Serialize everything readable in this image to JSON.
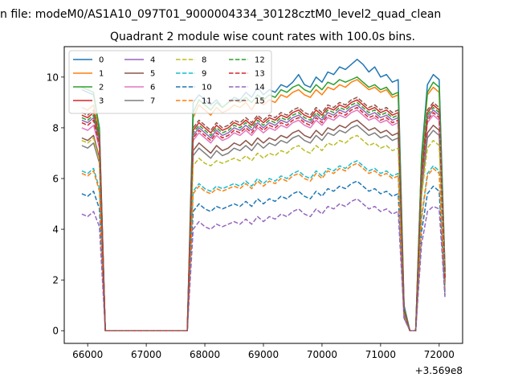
{
  "page": {
    "suptitle": "n file: modeM0/AS1A10_097T01_9000004334_30128cztM0_level2_quad_clean"
  },
  "chart_data": {
    "type": "line",
    "title": "Quadrant 2 module wise count rates with 100.0s bins.",
    "xlabel": "",
    "ylabel": "",
    "x_offset_label": "+3.569e8",
    "x_ticks": [
      66000,
      67000,
      68000,
      69000,
      70000,
      71000,
      72000
    ],
    "y_ticks": [
      0,
      2,
      4,
      6,
      8,
      10
    ],
    "xlim": [
      65600,
      72400
    ],
    "ylim": [
      -0.5,
      11.2
    ],
    "grid": false,
    "legend": {
      "placement": "top-left",
      "columns": 4
    },
    "x": [
      65900,
      66000,
      66100,
      66200,
      66300,
      67700,
      67800,
      67900,
      68000,
      68100,
      68200,
      68300,
      68400,
      68500,
      68600,
      68700,
      68800,
      68900,
      69000,
      69100,
      69200,
      69300,
      69400,
      69500,
      69600,
      69700,
      69800,
      69900,
      70000,
      70100,
      70200,
      70300,
      70400,
      70500,
      70600,
      70700,
      70800,
      70900,
      71000,
      71100,
      71200,
      71300,
      71400,
      71500,
      71600,
      71700,
      71800,
      71900,
      72000,
      72100
    ],
    "series": [
      {
        "name": "0",
        "color": "#1f77b4",
        "dash": "solid",
        "values": [
          9.5,
          9.4,
          9.3,
          8.0,
          0,
          0,
          9.0,
          9.3,
          9.1,
          8.9,
          9.1,
          8.8,
          9.0,
          9.2,
          9.1,
          9.4,
          9.2,
          9.6,
          9.3,
          9.5,
          9.4,
          9.7,
          9.6,
          9.8,
          10.1,
          9.7,
          9.6,
          10.0,
          9.8,
          10.2,
          10.1,
          10.4,
          10.3,
          10.5,
          10.7,
          10.5,
          10.2,
          10.4,
          10.0,
          10.1,
          9.8,
          9.9,
          1.0,
          0,
          0,
          6.9,
          9.7,
          10.1,
          9.9,
          2.4
        ]
      },
      {
        "name": "1",
        "color": "#ff7f0e",
        "dash": "solid",
        "values": [
          8.8,
          8.7,
          8.9,
          7.8,
          0,
          0,
          8.4,
          8.9,
          8.7,
          8.5,
          8.8,
          8.6,
          8.7,
          8.9,
          8.8,
          9.0,
          8.7,
          9.1,
          8.9,
          9.1,
          9.0,
          9.3,
          9.2,
          9.4,
          9.5,
          9.3,
          9.2,
          9.5,
          9.3,
          9.6,
          9.5,
          9.7,
          9.6,
          9.8,
          9.9,
          9.7,
          9.5,
          9.6,
          9.4,
          9.5,
          9.2,
          9.3,
          0.9,
          0,
          0,
          6.7,
          9.3,
          9.6,
          9.4,
          2.3
        ]
      },
      {
        "name": "2",
        "color": "#2ca02c",
        "dash": "solid",
        "values": [
          9.6,
          9.5,
          9.4,
          7.9,
          0,
          0,
          8.6,
          9.1,
          8.9,
          8.7,
          9.0,
          8.8,
          9.0,
          9.1,
          9.0,
          9.2,
          9.0,
          9.3,
          9.1,
          9.3,
          9.2,
          9.5,
          9.4,
          9.6,
          9.7,
          9.5,
          9.4,
          9.7,
          9.5,
          9.8,
          9.7,
          9.9,
          9.8,
          9.9,
          10.0,
          9.8,
          9.6,
          9.7,
          9.5,
          9.6,
          9.3,
          9.4,
          0.9,
          0,
          0,
          6.8,
          9.4,
          9.8,
          9.6,
          2.3
        ]
      },
      {
        "name": "3",
        "color": "#d62728",
        "dash": "solid",
        "values": [
          8.5,
          8.4,
          8.6,
          7.6,
          0,
          0,
          7.9,
          8.2,
          8.0,
          7.8,
          8.1,
          7.9,
          8.0,
          8.2,
          8.1,
          8.3,
          8.1,
          8.4,
          8.2,
          8.4,
          8.3,
          8.5,
          8.4,
          8.6,
          8.7,
          8.5,
          8.4,
          8.7,
          8.5,
          8.8,
          8.7,
          8.9,
          8.8,
          9.0,
          9.1,
          8.9,
          8.7,
          8.8,
          8.6,
          8.7,
          8.5,
          8.6,
          0.8,
          0,
          0,
          6.2,
          8.6,
          8.9,
          8.7,
          2.1
        ]
      },
      {
        "name": "4",
        "color": "#9467bd",
        "dash": "solid",
        "values": [
          8.3,
          8.2,
          8.4,
          7.4,
          0,
          0,
          7.7,
          8.0,
          7.8,
          7.6,
          7.9,
          7.7,
          7.8,
          8.0,
          7.9,
          8.1,
          7.9,
          8.2,
          8.0,
          8.2,
          8.1,
          8.3,
          8.2,
          8.4,
          8.5,
          8.3,
          8.2,
          8.5,
          8.3,
          8.6,
          8.5,
          8.7,
          8.6,
          8.8,
          8.9,
          8.7,
          8.5,
          8.6,
          8.4,
          8.5,
          8.3,
          8.4,
          0.8,
          0,
          0,
          6.0,
          8.4,
          8.7,
          8.5,
          2.0
        ]
      },
      {
        "name": "5",
        "color": "#8c564b",
        "dash": "solid",
        "values": [
          7.6,
          7.5,
          7.7,
          6.8,
          0,
          0,
          7.1,
          7.4,
          7.2,
          7.0,
          7.3,
          7.1,
          7.2,
          7.4,
          7.3,
          7.5,
          7.3,
          7.6,
          7.4,
          7.6,
          7.5,
          7.7,
          7.6,
          7.8,
          7.9,
          7.7,
          7.6,
          7.9,
          7.7,
          8.0,
          7.9,
          8.1,
          8.0,
          8.2,
          8.3,
          8.1,
          7.9,
          8.0,
          7.8,
          7.9,
          7.7,
          7.8,
          0.7,
          0,
          0,
          5.6,
          7.8,
          8.1,
          7.9,
          1.9
        ]
      },
      {
        "name": "6",
        "color": "#e377c2",
        "dash": "solid",
        "values": [
          8.0,
          7.9,
          8.1,
          7.2,
          0,
          0,
          7.5,
          7.8,
          7.6,
          7.4,
          7.7,
          7.5,
          7.6,
          7.8,
          7.7,
          7.9,
          7.7,
          8.0,
          7.8,
          8.0,
          7.9,
          8.1,
          8.0,
          8.2,
          8.3,
          8.1,
          8.0,
          8.3,
          8.1,
          8.4,
          8.3,
          8.5,
          8.4,
          8.6,
          8.7,
          8.5,
          8.3,
          8.4,
          8.2,
          8.3,
          8.1,
          8.2,
          0.8,
          0,
          0,
          5.9,
          8.2,
          8.5,
          8.3,
          2.0
        ]
      },
      {
        "name": "7",
        "color": "#7f7f7f",
        "dash": "solid",
        "values": [
          7.3,
          7.2,
          7.4,
          6.6,
          0,
          0,
          6.9,
          7.2,
          7.0,
          6.8,
          7.1,
          6.9,
          7.0,
          7.2,
          7.1,
          7.3,
          7.1,
          7.4,
          7.2,
          7.4,
          7.3,
          7.5,
          7.4,
          7.6,
          7.7,
          7.5,
          7.4,
          7.7,
          7.5,
          7.8,
          7.7,
          7.9,
          7.8,
          8.0,
          8.1,
          7.9,
          7.7,
          7.8,
          7.6,
          7.7,
          7.5,
          7.6,
          0.7,
          0,
          0,
          5.4,
          7.6,
          7.9,
          7.7,
          1.8
        ]
      },
      {
        "name": "8",
        "color": "#bcbd22",
        "dash": "dashed",
        "values": [
          7.5,
          7.4,
          7.6,
          6.7,
          0,
          0,
          6.5,
          6.8,
          6.6,
          6.5,
          6.7,
          6.6,
          6.7,
          6.8,
          6.7,
          6.9,
          6.7,
          7.0,
          6.8,
          7.0,
          6.9,
          7.1,
          7.0,
          7.2,
          7.3,
          7.1,
          7.0,
          7.3,
          7.1,
          7.4,
          7.3,
          7.5,
          7.4,
          7.6,
          7.7,
          7.5,
          7.3,
          7.4,
          7.2,
          7.3,
          7.1,
          7.2,
          0.7,
          0,
          0,
          5.3,
          7.2,
          7.5,
          7.3,
          1.8
        ]
      },
      {
        "name": "9",
        "color": "#17becf",
        "dash": "dashed",
        "values": [
          6.3,
          6.2,
          6.4,
          5.6,
          0,
          0,
          5.5,
          5.8,
          5.6,
          5.5,
          5.7,
          5.6,
          5.7,
          5.8,
          5.7,
          5.9,
          5.7,
          6.0,
          5.8,
          6.0,
          5.9,
          6.1,
          6.0,
          6.2,
          6.3,
          6.1,
          6.0,
          6.3,
          6.1,
          6.4,
          6.3,
          6.5,
          6.4,
          6.6,
          6.7,
          6.5,
          6.3,
          6.4,
          6.2,
          6.3,
          6.1,
          6.2,
          0.6,
          0,
          0,
          4.5,
          6.2,
          6.5,
          6.3,
          1.6
        ]
      },
      {
        "name": "10",
        "color": "#1f77b4",
        "dash": "dashed",
        "values": [
          5.4,
          5.3,
          5.5,
          4.8,
          0,
          0,
          4.7,
          5.0,
          4.8,
          4.7,
          4.9,
          4.8,
          4.9,
          5.0,
          4.9,
          5.1,
          4.9,
          5.2,
          5.0,
          5.2,
          5.1,
          5.3,
          5.2,
          5.4,
          5.5,
          5.3,
          5.2,
          5.5,
          5.3,
          5.6,
          5.5,
          5.7,
          5.6,
          5.8,
          5.9,
          5.7,
          5.5,
          5.6,
          5.4,
          5.5,
          5.3,
          5.4,
          0.5,
          0,
          0,
          3.9,
          5.4,
          5.7,
          5.5,
          1.4
        ]
      },
      {
        "name": "11",
        "color": "#ff7f0e",
        "dash": "dashed",
        "values": [
          6.2,
          6.1,
          6.3,
          5.5,
          0,
          0,
          5.4,
          5.7,
          5.5,
          5.4,
          5.6,
          5.5,
          5.6,
          5.7,
          5.6,
          5.8,
          5.6,
          5.9,
          5.7,
          5.9,
          5.8,
          6.0,
          5.9,
          6.1,
          6.2,
          6.0,
          5.9,
          6.2,
          6.0,
          6.3,
          6.2,
          6.4,
          6.3,
          6.5,
          6.6,
          6.4,
          6.2,
          6.3,
          6.1,
          6.2,
          6.0,
          6.1,
          0.6,
          0,
          0,
          4.4,
          6.1,
          6.4,
          6.2,
          1.5
        ]
      },
      {
        "name": "12",
        "color": "#2ca02c",
        "dash": "dashed",
        "values": [
          8.4,
          8.3,
          8.5,
          7.5,
          0,
          0,
          7.8,
          8.1,
          7.9,
          7.7,
          8.0,
          7.8,
          7.9,
          8.1,
          8.0,
          8.2,
          8.0,
          8.3,
          8.1,
          8.3,
          8.2,
          8.4,
          8.3,
          8.5,
          8.6,
          8.4,
          8.3,
          8.6,
          8.4,
          8.7,
          8.6,
          8.8,
          8.7,
          8.9,
          9.0,
          8.8,
          8.6,
          8.7,
          8.5,
          8.6,
          8.4,
          8.5,
          0.8,
          0,
          0,
          6.1,
          8.5,
          8.8,
          8.6,
          2.1
        ]
      },
      {
        "name": "13",
        "color": "#d62728",
        "dash": "dashed",
        "values": [
          8.2,
          8.1,
          8.3,
          7.3,
          0,
          0,
          7.6,
          7.9,
          7.7,
          7.5,
          7.8,
          7.6,
          7.7,
          7.9,
          7.8,
          8.0,
          7.8,
          8.1,
          7.9,
          8.1,
          8.0,
          8.2,
          8.1,
          8.3,
          8.4,
          8.2,
          8.1,
          8.4,
          8.2,
          8.5,
          8.4,
          8.6,
          8.5,
          8.7,
          8.8,
          8.6,
          8.4,
          8.5,
          8.3,
          8.4,
          8.2,
          8.3,
          0.8,
          0,
          0,
          6.0,
          8.3,
          8.6,
          8.4,
          2.0
        ]
      },
      {
        "name": "14",
        "color": "#9467bd",
        "dash": "dashed",
        "values": [
          4.6,
          4.5,
          4.7,
          4.1,
          0,
          0,
          4.0,
          4.3,
          4.1,
          4.0,
          4.2,
          4.1,
          4.2,
          4.3,
          4.2,
          4.4,
          4.2,
          4.5,
          4.3,
          4.5,
          4.4,
          4.6,
          4.5,
          4.7,
          4.8,
          4.6,
          4.5,
          4.8,
          4.6,
          4.9,
          4.8,
          5.0,
          4.9,
          5.1,
          5.2,
          5.0,
          4.8,
          4.9,
          4.7,
          4.8,
          4.6,
          4.7,
          0.5,
          0,
          0,
          3.4,
          4.7,
          4.9,
          4.8,
          1.3
        ]
      },
      {
        "name": "15",
        "color": "#8c564b",
        "dash": "dashed",
        "values": [
          8.6,
          8.5,
          8.7,
          7.7,
          0,
          0,
          8.0,
          8.3,
          8.1,
          7.9,
          8.2,
          8.0,
          8.1,
          8.3,
          8.2,
          8.4,
          8.2,
          8.5,
          8.3,
          8.5,
          8.4,
          8.6,
          8.5,
          8.7,
          8.8,
          8.6,
          8.5,
          8.8,
          8.6,
          8.9,
          8.8,
          9.0,
          8.9,
          9.1,
          9.2,
          9.0,
          8.8,
          8.9,
          8.7,
          8.8,
          8.6,
          8.7,
          0.8,
          0,
          0,
          6.3,
          8.7,
          9.0,
          8.8,
          2.2
        ]
      }
    ]
  }
}
